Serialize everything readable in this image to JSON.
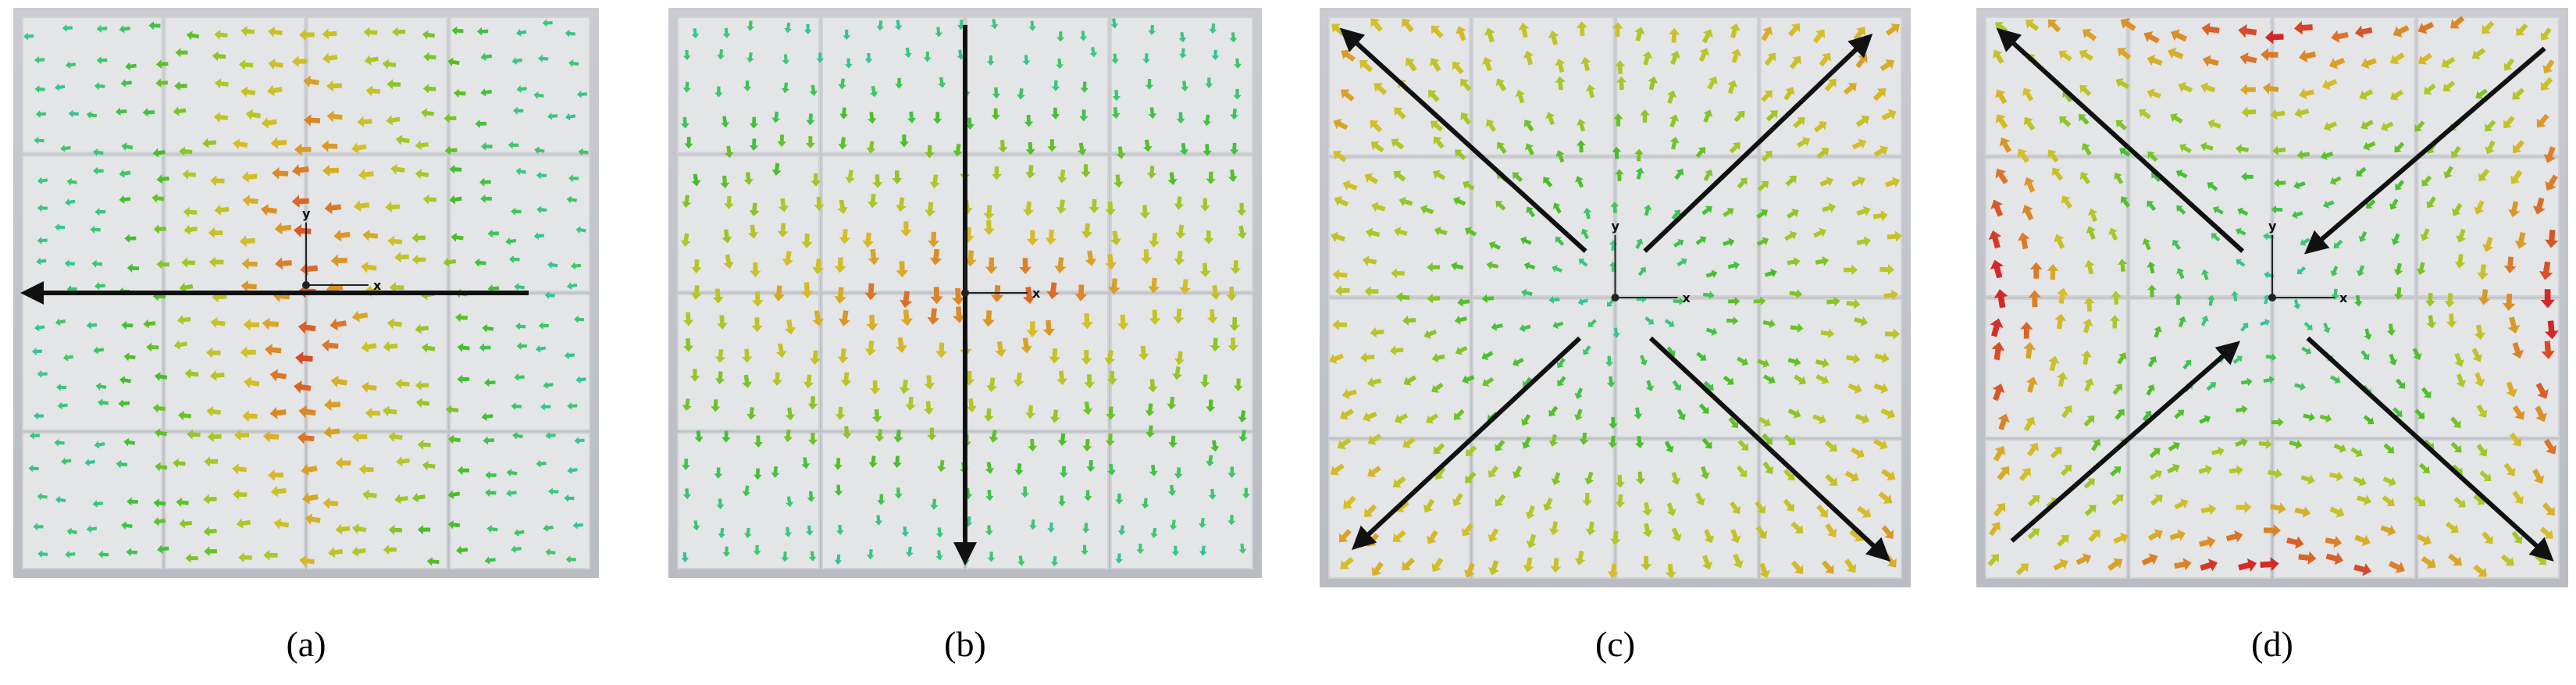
{
  "panels": [
    {
      "label": "(a)",
      "axis_y": "y",
      "axis_x": "x"
    },
    {
      "label": "(b)",
      "axis_x": "x"
    },
    {
      "label": "(c)",
      "axis_y": "y",
      "axis_x": "x"
    },
    {
      "label": "(d)",
      "axis_y": "y",
      "axis_x": "x"
    }
  ]
}
